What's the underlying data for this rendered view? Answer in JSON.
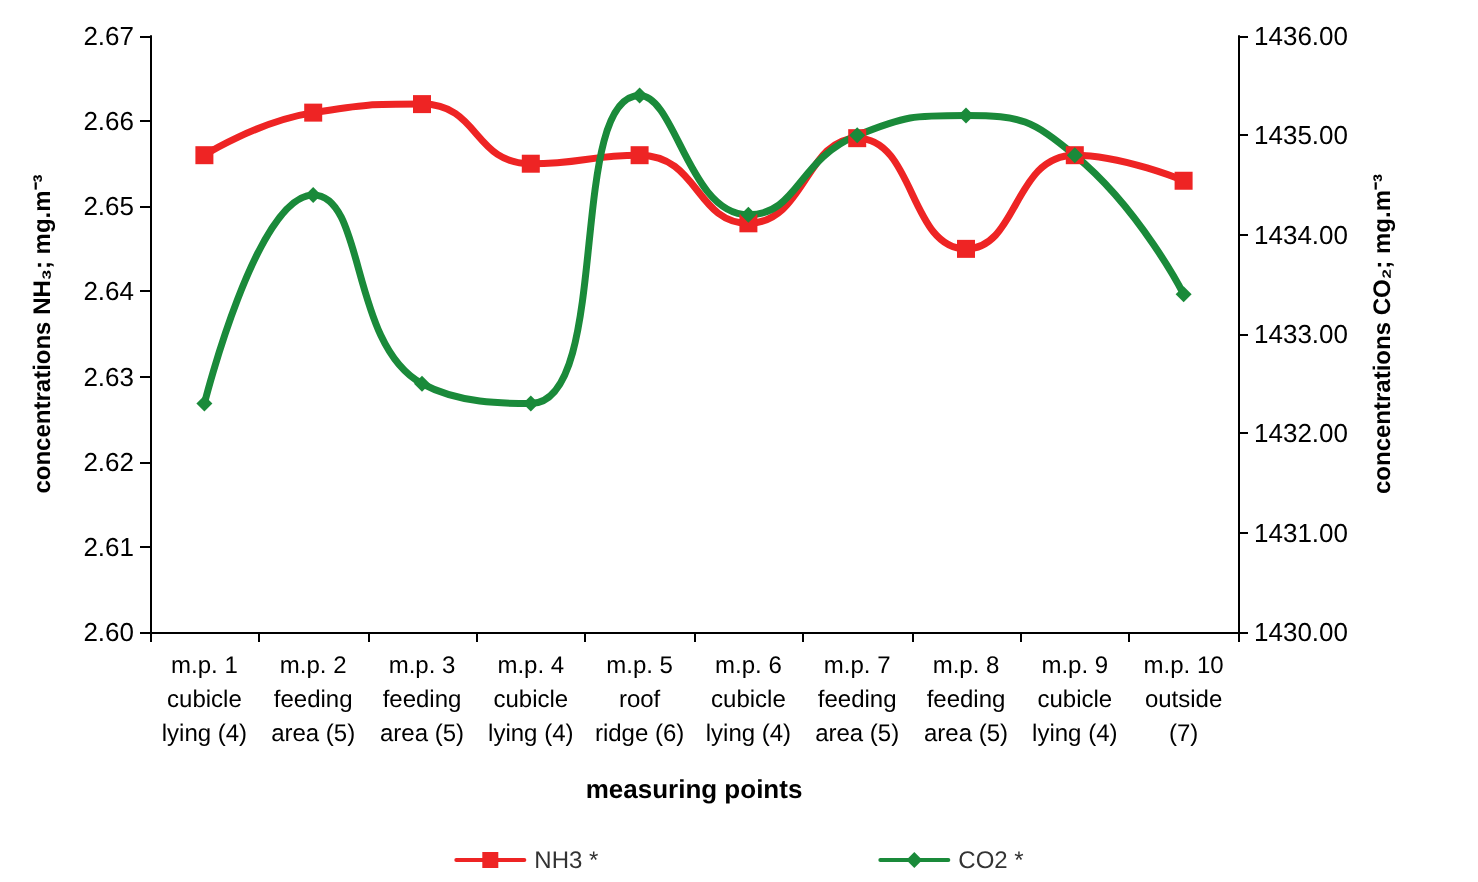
{
  "chart_data": {
    "type": "line",
    "xlabel": "measuring points",
    "ylabel": "concentrations NH₃; mg.m⁻³",
    "y2label": "concentrations CO₂; mg.m⁻³",
    "categories": [
      "m.p. 1\ncubicle\nlying (4)",
      "m.p. 2\nfeeding\narea (5)",
      "m.p. 3\nfeeding\narea (5)",
      "m.p. 4\ncubicle\nlying (4)",
      "m.p. 5\nroof\nridge (6)",
      "m.p. 6\ncubicle\nlying (4)",
      "m.p. 7\nfeeding\narea (5)",
      "m.p. 8\nfeeding\narea (5)",
      "m.p. 9\ncubicle\nlying (4)",
      "m.p. 10\noutside\n(7)"
    ],
    "series": [
      {
        "name": "NH3 *",
        "color": "#ee2424",
        "marker": "square",
        "values": [
          2.656,
          2.661,
          2.662,
          2.655,
          2.656,
          2.648,
          2.658,
          2.645,
          2.656,
          2.653
        ]
      },
      {
        "name": "CO2 *",
        "color": "#1a8a3a",
        "marker": "diamond",
        "axis": "y2",
        "values": [
          1432.3,
          1434.4,
          1432.5,
          1432.3,
          1435.4,
          1434.2,
          1435.0,
          1435.2,
          1434.8,
          1433.4
        ]
      }
    ],
    "ylim": [
      2.6,
      2.67
    ],
    "yticks": [
      {
        "value": 2.6,
        "label": "2.60"
      },
      {
        "value": 2.61,
        "label": "2.61"
      },
      {
        "value": 2.62,
        "label": "2.62"
      },
      {
        "value": 2.63,
        "label": "2.63"
      },
      {
        "value": 2.64,
        "label": "2.64"
      },
      {
        "value": 2.65,
        "label": "2.65"
      },
      {
        "value": 2.66,
        "label": "2.66"
      },
      {
        "value": 2.67,
        "label": "2.67"
      }
    ],
    "y2lim": [
      1430,
      1436
    ],
    "y2ticks": [
      {
        "value": 1430,
        "label": "1430.00"
      },
      {
        "value": 1431,
        "label": "1431.00"
      },
      {
        "value": 1432,
        "label": "1432.00"
      },
      {
        "value": 1433,
        "label": "1433.00"
      },
      {
        "value": 1434,
        "label": "1434.00"
      },
      {
        "value": 1435,
        "label": "1435.00"
      },
      {
        "value": 1436,
        "label": "1436.00"
      }
    ],
    "grid": false,
    "legend": "bottom",
    "line_style": "solid"
  }
}
